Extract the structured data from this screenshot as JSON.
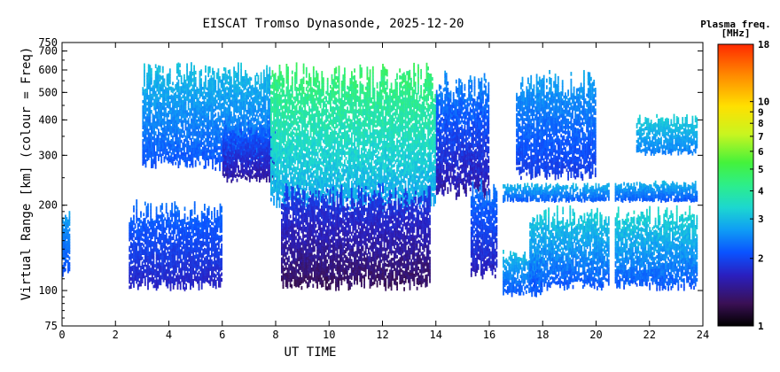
{
  "chart_data": {
    "type": "heatmap",
    "title": "EISCAT Tromso Dynasonde, 2025-12-20",
    "xlabel": "UT TIME",
    "ylabel": "Virtual Range [km] (colour = Freq)",
    "xlim": [
      0,
      24
    ],
    "ylim": [
      75,
      750
    ],
    "y_scale": "log",
    "x_ticks": [
      "0",
      "2",
      "4",
      "6",
      "8",
      "10",
      "12",
      "14",
      "16",
      "18",
      "20",
      "22",
      "24"
    ],
    "y_ticks": [
      "75",
      "100",
      "200",
      "300",
      "400",
      "500",
      "600",
      "700",
      "750"
    ],
    "colorbar": {
      "title": "Plasma freq.",
      "units": "[MHz]",
      "scale": "log",
      "range": [
        1,
        18
      ],
      "ticks": [
        "1",
        "2",
        "3",
        "4",
        "5",
        "6",
        "7",
        "8",
        "9",
        "10",
        "18"
      ]
    },
    "colormap": [
      "#000000",
      "#3a1055",
      "#2a1fbf",
      "#0a52ff",
      "#0f9cf5",
      "#1cd7d0",
      "#2dee8a",
      "#44f23b",
      "#c8f520",
      "#ffe000",
      "#ff8a00",
      "#ff2a00"
    ],
    "echo_regions": [
      {
        "t0": 0.0,
        "t1": 0.3,
        "h0": 110,
        "h1": 200,
        "f0": 2.0,
        "f1": 3.2
      },
      {
        "t0": 2.5,
        "t1": 6.0,
        "h0": 100,
        "h1": 210,
        "f0": 1.6,
        "f1": 2.6
      },
      {
        "t0": 3.0,
        "t1": 7.8,
        "h0": 265,
        "h1": 640,
        "f0": 2.0,
        "f1": 3.6
      },
      {
        "t0": 6.0,
        "t1": 8.0,
        "h0": 240,
        "h1": 400,
        "f0": 1.4,
        "f1": 2.6
      },
      {
        "t0": 7.8,
        "t1": 14.0,
        "h0": 190,
        "h1": 640,
        "f0": 2.6,
        "f1": 6.0
      },
      {
        "t0": 8.2,
        "t1": 13.8,
        "h0": 100,
        "h1": 240,
        "f0": 1.2,
        "f1": 2.2
      },
      {
        "t0": 14.0,
        "t1": 16.0,
        "h0": 210,
        "h1": 600,
        "f0": 1.4,
        "f1": 3.0
      },
      {
        "t0": 15.3,
        "t1": 16.3,
        "h0": 110,
        "h1": 250,
        "f0": 1.5,
        "f1": 2.8
      },
      {
        "t0": 16.5,
        "t1": 18.0,
        "h0": 95,
        "h1": 140,
        "f0": 2.0,
        "f1": 3.6
      },
      {
        "t0": 16.5,
        "t1": 20.5,
        "h0": 205,
        "h1": 240,
        "f0": 2.0,
        "f1": 3.4
      },
      {
        "t0": 17.0,
        "t1": 20.0,
        "h0": 245,
        "h1": 600,
        "f0": 1.8,
        "f1": 3.2
      },
      {
        "t0": 17.5,
        "t1": 20.5,
        "h0": 100,
        "h1": 200,
        "f0": 2.0,
        "f1": 4.0
      },
      {
        "t0": 20.7,
        "t1": 23.8,
        "h0": 100,
        "h1": 200,
        "f0": 2.0,
        "f1": 4.2
      },
      {
        "t0": 20.7,
        "t1": 23.8,
        "h0": 205,
        "h1": 245,
        "f0": 2.0,
        "f1": 3.4
      },
      {
        "t0": 21.5,
        "t1": 23.8,
        "h0": 300,
        "h1": 420,
        "f0": 2.4,
        "f1": 3.8
      }
    ]
  }
}
